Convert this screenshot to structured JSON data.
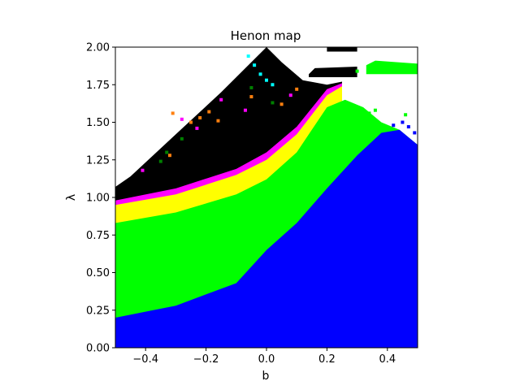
{
  "chart_data": {
    "type": "heatmap",
    "title": "Henon map",
    "xlabel": "b",
    "ylabel": "λ",
    "xlim": [
      -0.5,
      0.5
    ],
    "ylim": [
      0.0,
      2.0
    ],
    "x_ticks": [
      {
        "value": -0.4,
        "label": "−0.4"
      },
      {
        "value": -0.2,
        "label": "−0.2"
      },
      {
        "value": 0.0,
        "label": "0.0"
      },
      {
        "value": 0.2,
        "label": "0.2"
      },
      {
        "value": 0.4,
        "label": "0.4"
      }
    ],
    "y_ticks": [
      {
        "value": 0.0,
        "label": "0.00"
      },
      {
        "value": 0.25,
        "label": "0.25"
      },
      {
        "value": 0.5,
        "label": "0.50"
      },
      {
        "value": 0.75,
        "label": "0.75"
      },
      {
        "value": 1.0,
        "label": "1.00"
      },
      {
        "value": 1.25,
        "label": "1.25"
      },
      {
        "value": 1.5,
        "label": "1.50"
      },
      {
        "value": 1.75,
        "label": "1.75"
      },
      {
        "value": 2.0,
        "label": "2.00"
      }
    ],
    "grid": false,
    "legend": "none",
    "colors": {
      "blue": "#0000ff",
      "green": "#00ff00",
      "yellow": "#ffff00",
      "magenta": "#ff00ff",
      "black": "#000000",
      "white": "#ffffff",
      "cyan": "#00ffff",
      "orange": "#ff7f0e",
      "dark_green": "#008000"
    },
    "regions": [
      {
        "color": "blue",
        "boundary": [
          [
            -0.5,
            0.2
          ],
          [
            -0.3,
            0.28
          ],
          [
            -0.1,
            0.43
          ],
          [
            0.0,
            0.65
          ],
          [
            0.1,
            0.83
          ],
          [
            0.2,
            1.06
          ],
          [
            0.3,
            1.28
          ],
          [
            0.38,
            1.43
          ],
          [
            0.44,
            1.45
          ],
          [
            0.5,
            1.35
          ]
        ]
      },
      {
        "color": "green",
        "boundary": [
          [
            -0.5,
            0.83
          ],
          [
            -0.3,
            0.9
          ],
          [
            -0.1,
            1.02
          ],
          [
            0.0,
            1.12
          ],
          [
            0.1,
            1.3
          ],
          [
            0.2,
            1.6
          ],
          [
            0.26,
            1.65
          ],
          [
            0.32,
            1.6
          ],
          [
            0.38,
            1.5
          ],
          [
            0.44,
            1.45
          ],
          [
            0.5,
            1.35
          ]
        ]
      },
      {
        "color": "yellow",
        "boundary": [
          [
            -0.5,
            0.95
          ],
          [
            -0.3,
            1.02
          ],
          [
            -0.1,
            1.15
          ],
          [
            0.0,
            1.25
          ],
          [
            0.1,
            1.42
          ],
          [
            0.2,
            1.68
          ],
          [
            0.25,
            1.74
          ]
        ]
      },
      {
        "color": "magenta",
        "boundary": [
          [
            -0.5,
            0.98
          ],
          [
            -0.3,
            1.06
          ],
          [
            -0.1,
            1.19
          ],
          [
            0.0,
            1.3
          ],
          [
            0.1,
            1.47
          ],
          [
            0.2,
            1.72
          ],
          [
            0.25,
            1.76
          ]
        ]
      },
      {
        "color": "black",
        "boundary": [
          [
            -0.5,
            1.07
          ],
          [
            -0.45,
            1.14
          ],
          [
            -0.3,
            1.42
          ],
          [
            -0.15,
            1.7
          ],
          [
            -0.02,
            1.96
          ],
          [
            0.0,
            2.0
          ],
          [
            0.05,
            1.9
          ],
          [
            0.12,
            1.78
          ],
          [
            0.2,
            1.75
          ],
          [
            0.25,
            1.77
          ]
        ]
      },
      {
        "color": "black",
        "boundary": [
          [
            0.14,
            1.82
          ],
          [
            0.16,
            1.86
          ],
          [
            0.3,
            1.87
          ],
          [
            0.3,
            1.8
          ],
          [
            0.14,
            1.8
          ]
        ]
      },
      {
        "color": "green",
        "boundary": [
          [
            0.33,
            1.88
          ],
          [
            0.36,
            1.91
          ],
          [
            0.5,
            1.89
          ],
          [
            0.5,
            1.82
          ],
          [
            0.33,
            1.82
          ]
        ]
      },
      {
        "color": "black",
        "boundary": [
          [
            0.2,
            2.0
          ],
          [
            0.2,
            1.97
          ],
          [
            0.3,
            1.97
          ],
          [
            0.3,
            2.0
          ]
        ]
      }
    ],
    "points": [
      {
        "color": "cyan",
        "x": -0.06,
        "y": 1.94
      },
      {
        "color": "cyan",
        "x": -0.04,
        "y": 1.88
      },
      {
        "color": "cyan",
        "x": -0.02,
        "y": 1.82
      },
      {
        "color": "cyan",
        "x": 0.0,
        "y": 1.78
      },
      {
        "color": "cyan",
        "x": 0.02,
        "y": 1.75
      },
      {
        "color": "orange",
        "x": -0.31,
        "y": 1.56
      },
      {
        "color": "orange",
        "x": -0.25,
        "y": 1.5
      },
      {
        "color": "orange",
        "x": -0.22,
        "y": 1.53
      },
      {
        "color": "orange",
        "x": -0.19,
        "y": 1.57
      },
      {
        "color": "orange",
        "x": -0.16,
        "y": 1.51
      },
      {
        "color": "orange",
        "x": -0.05,
        "y": 1.67
      },
      {
        "color": "orange",
        "x": 0.05,
        "y": 1.62
      },
      {
        "color": "orange",
        "x": 0.1,
        "y": 1.72
      },
      {
        "color": "orange",
        "x": -0.32,
        "y": 1.28
      },
      {
        "color": "dark_green",
        "x": -0.33,
        "y": 1.3
      },
      {
        "color": "dark_green",
        "x": -0.35,
        "y": 1.24
      },
      {
        "color": "dark_green",
        "x": -0.28,
        "y": 1.39
      },
      {
        "color": "dark_green",
        "x": -0.05,
        "y": 1.73
      },
      {
        "color": "dark_green",
        "x": 0.02,
        "y": 1.63
      },
      {
        "color": "magenta",
        "x": -0.28,
        "y": 1.52
      },
      {
        "color": "magenta",
        "x": -0.41,
        "y": 1.18
      },
      {
        "color": "magenta",
        "x": -0.23,
        "y": 1.46
      },
      {
        "color": "magenta",
        "x": -0.15,
        "y": 1.65
      },
      {
        "color": "magenta",
        "x": -0.07,
        "y": 1.58
      },
      {
        "color": "magenta",
        "x": 0.08,
        "y": 1.68
      },
      {
        "color": "blue",
        "x": 0.42,
        "y": 1.48
      },
      {
        "color": "blue",
        "x": 0.45,
        "y": 1.5
      },
      {
        "color": "blue",
        "x": 0.47,
        "y": 1.47
      },
      {
        "color": "blue",
        "x": 0.49,
        "y": 1.43
      },
      {
        "color": "green",
        "x": 0.34,
        "y": 1.56
      },
      {
        "color": "green",
        "x": 0.36,
        "y": 1.58
      },
      {
        "color": "green",
        "x": 0.46,
        "y": 1.55
      },
      {
        "color": "green",
        "x": 0.3,
        "y": 1.84
      }
    ]
  }
}
